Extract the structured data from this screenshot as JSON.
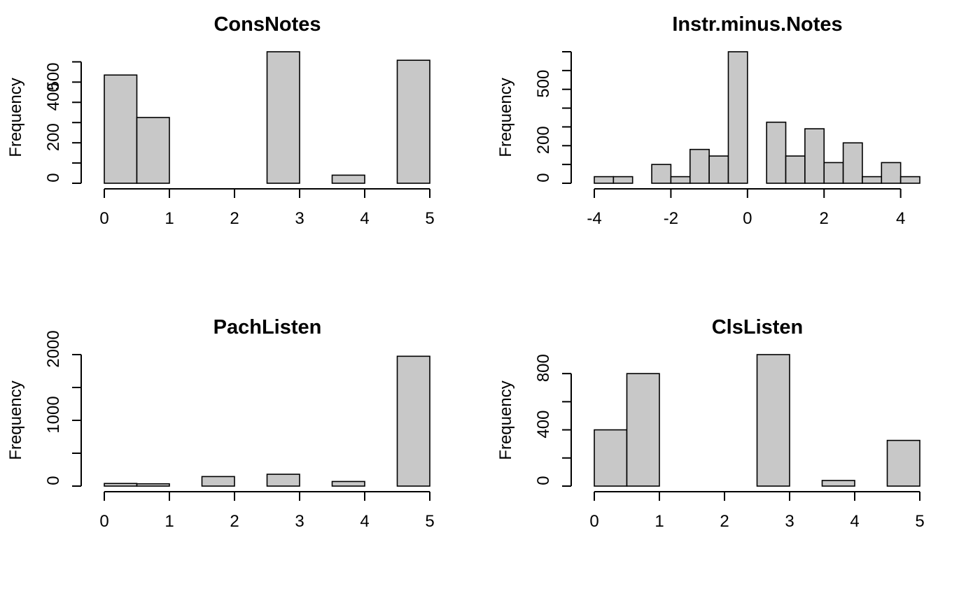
{
  "fill_color": "#c8c8c8",
  "chart_data": [
    {
      "type": "bar",
      "title": "ConsNotes",
      "ylabel": "Frequency",
      "xlabel": "",
      "bin_edges": [
        0,
        0.5,
        1,
        1.5,
        2,
        2.5,
        3,
        3.5,
        4,
        4.5,
        5
      ],
      "values": [
        535,
        325,
        0,
        0,
        0,
        650,
        0,
        40,
        0,
        608
      ],
      "xticks": [
        0,
        1,
        2,
        3,
        4,
        5
      ],
      "yticks": [
        0,
        100,
        200,
        300,
        400,
        500,
        600
      ],
      "ytick_labels": [
        "0",
        "",
        "200",
        "",
        "400",
        "500",
        ""
      ],
      "ylim": [
        0,
        650
      ]
    },
    {
      "type": "bar",
      "title": "Instr.minus.Notes",
      "ylabel": "Frequency",
      "xlabel": "",
      "bin_edges": [
        -4,
        -3.5,
        -3,
        -2.5,
        -2,
        -1.5,
        -1,
        -0.5,
        0,
        0.5,
        1,
        1.5,
        2,
        2.5,
        3,
        3.5,
        4,
        4.5
      ],
      "values": [
        35,
        35,
        0,
        100,
        35,
        180,
        145,
        700,
        0,
        325,
        145,
        290,
        110,
        215,
        35,
        110,
        35
      ],
      "xticks": [
        -4,
        -2,
        0,
        2,
        4
      ],
      "yticks": [
        0,
        100,
        200,
        300,
        400,
        500,
        600,
        700
      ],
      "ytick_labels": [
        "0",
        "",
        "200",
        "",
        "",
        "500",
        "",
        ""
      ],
      "ylim": [
        0,
        700
      ]
    },
    {
      "type": "bar",
      "title": "PachListen",
      "ylabel": "Frequency",
      "xlabel": "",
      "bin_edges": [
        0,
        0.5,
        1,
        1.5,
        2,
        2.5,
        3,
        3.5,
        4,
        4.5,
        5
      ],
      "values": [
        40,
        35,
        0,
        145,
        0,
        180,
        0,
        70,
        0,
        1975
      ],
      "xticks": [
        0,
        1,
        2,
        3,
        4,
        5
      ],
      "yticks": [
        0,
        500,
        1000,
        1500,
        2000
      ],
      "ytick_labels": [
        "0",
        "",
        "1000",
        "",
        "2000"
      ],
      "ylim": [
        0,
        2000
      ]
    },
    {
      "type": "bar",
      "title": "ClsListen",
      "ylabel": "Frequency",
      "xlabel": "",
      "bin_edges": [
        0,
        0.5,
        1,
        1.5,
        2,
        2.5,
        3,
        3.5,
        4,
        4.5,
        5
      ],
      "values": [
        400,
        800,
        0,
        0,
        0,
        935,
        0,
        40,
        0,
        325
      ],
      "xticks": [
        0,
        1,
        2,
        3,
        4,
        5
      ],
      "yticks": [
        0,
        200,
        400,
        600,
        800
      ],
      "ytick_labels": [
        "0",
        "",
        "400",
        "",
        "800"
      ],
      "ylim": [
        0,
        935
      ]
    }
  ]
}
